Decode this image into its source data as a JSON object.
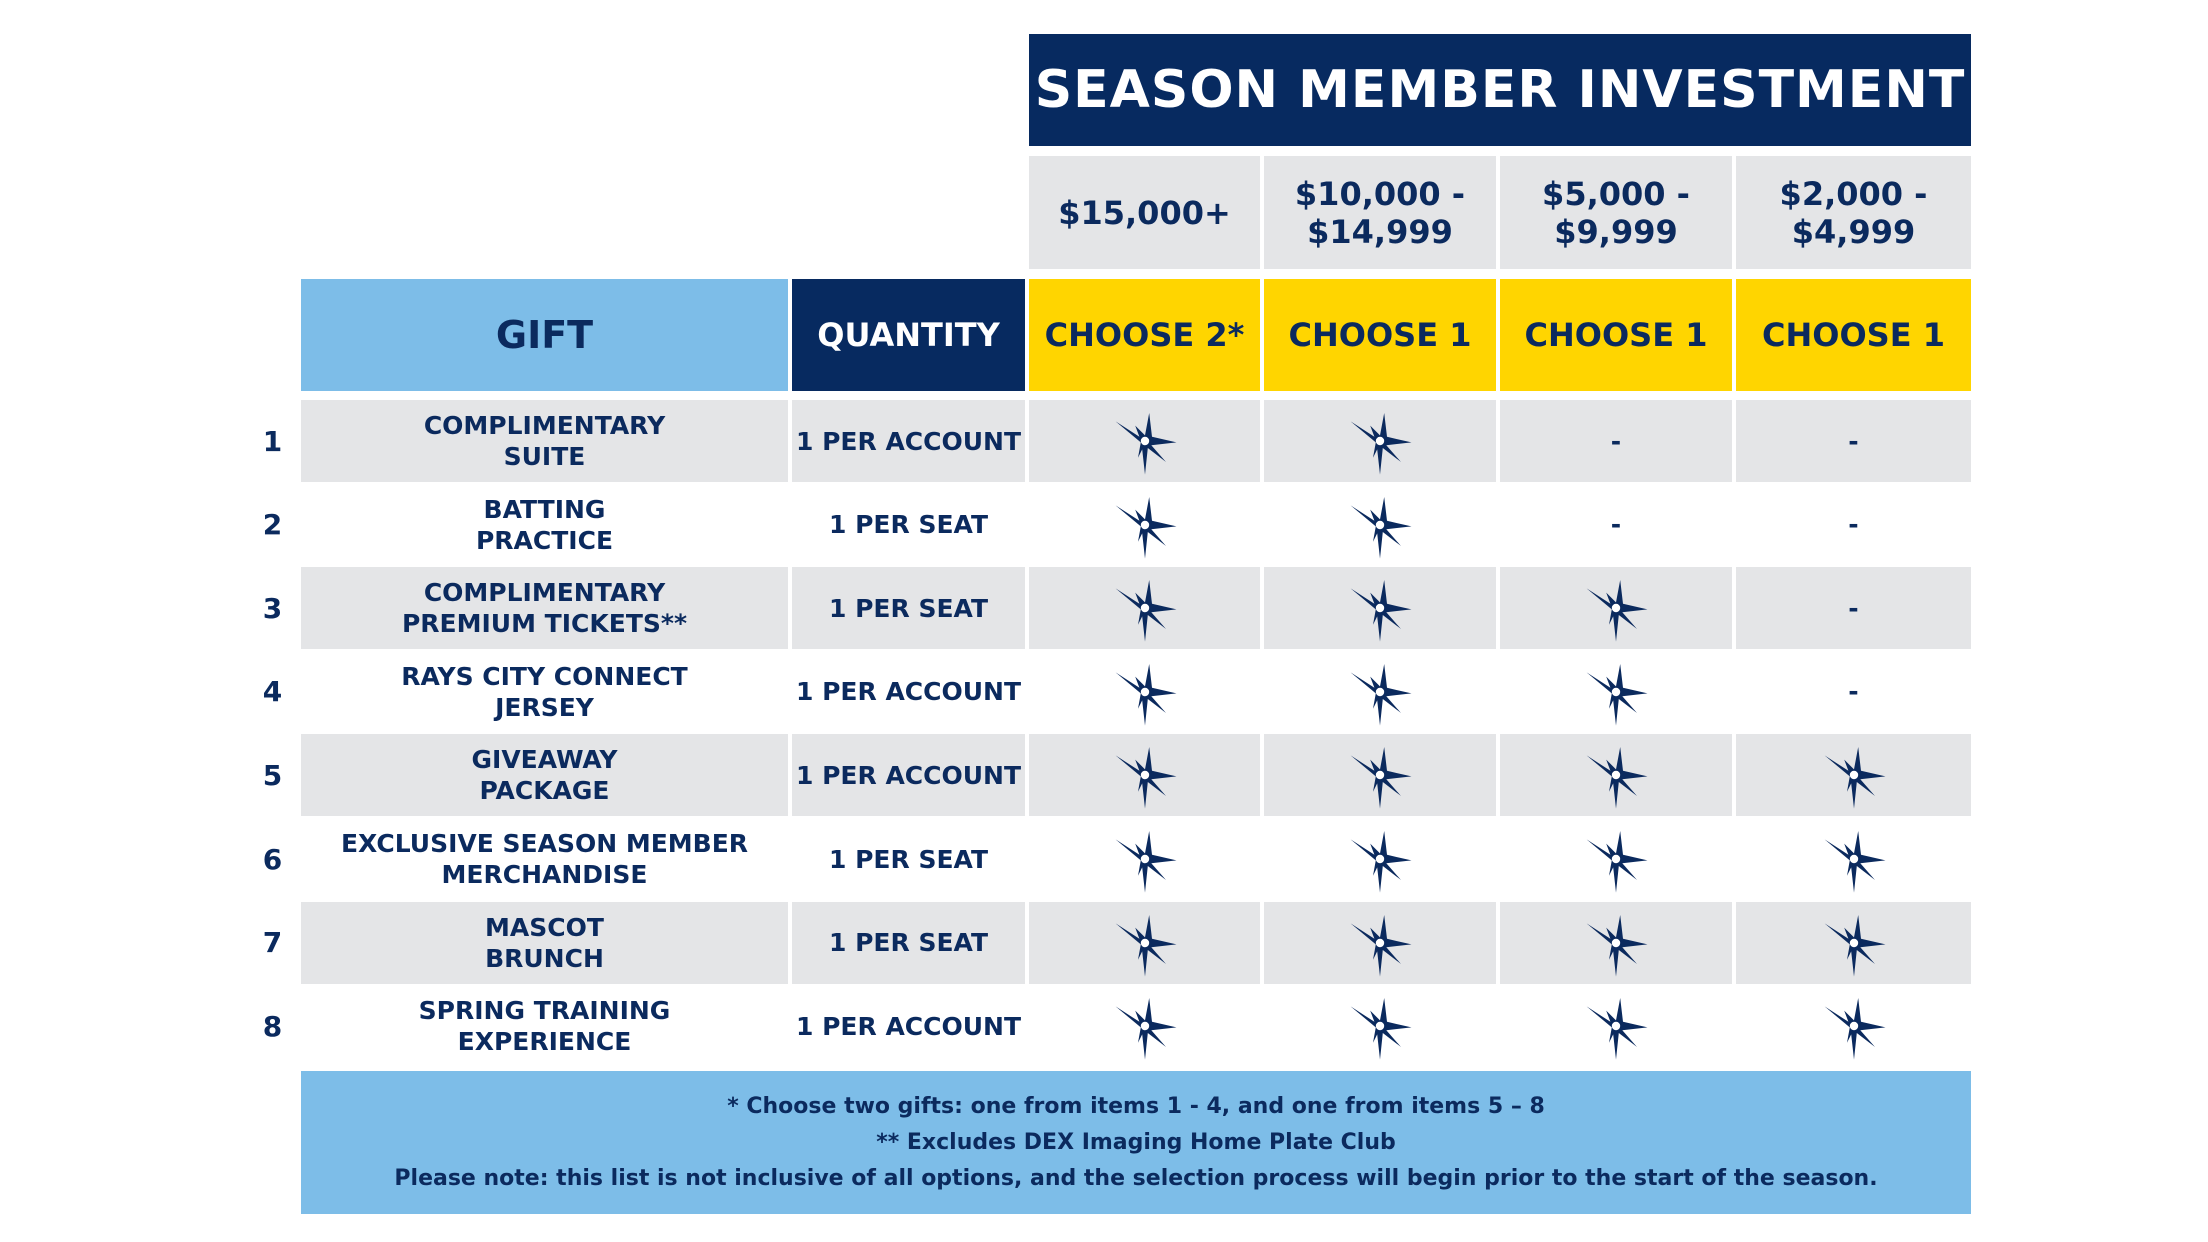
{
  "title": "SEASON MEMBER INVESTMENT",
  "tiers": [
    {
      "price": "$15,000+",
      "choose": "CHOOSE 2*"
    },
    {
      "price": "$10,000 -\n$14,999",
      "choose": "CHOOSE 1"
    },
    {
      "price": "$5,000 -\n$9,999",
      "choose": "CHOOSE 1"
    },
    {
      "price": "$2,000 -\n$4,999",
      "choose": "CHOOSE 1"
    }
  ],
  "headers": {
    "gift": "GIFT",
    "quantity": "QUANTITY"
  },
  "colors": {
    "navy": "#072a60",
    "light_blue": "#7dbde8",
    "yellow": "#ffd500",
    "grey": "#e4e5e7"
  },
  "included_icon": "rays-sunburst-star-icon",
  "not_included": "-",
  "rows": [
    {
      "num": "1",
      "gift": "COMPLIMENTARY\nSUITE",
      "qty": "1 PER ACCOUNT",
      "tiers": [
        true,
        true,
        false,
        false
      ]
    },
    {
      "num": "2",
      "gift": "BATTING\nPRACTICE",
      "qty": "1 PER SEAT",
      "tiers": [
        true,
        true,
        false,
        false
      ]
    },
    {
      "num": "3",
      "gift": "COMPLIMENTARY\nPREMIUM TICKETS**",
      "qty": "1 PER SEAT",
      "tiers": [
        true,
        true,
        true,
        false
      ]
    },
    {
      "num": "4",
      "gift": "RAYS CITY CONNECT\nJERSEY",
      "qty": "1 PER ACCOUNT",
      "tiers": [
        true,
        true,
        true,
        false
      ]
    },
    {
      "num": "5",
      "gift": "GIVEAWAY\nPACKAGE",
      "qty": "1 PER ACCOUNT",
      "tiers": [
        true,
        true,
        true,
        true
      ]
    },
    {
      "num": "6",
      "gift": "EXCLUSIVE SEASON MEMBER\nMERCHANDISE",
      "qty": "1 PER SEAT",
      "tiers": [
        true,
        true,
        true,
        true
      ]
    },
    {
      "num": "7",
      "gift": "MASCOT\nBRUNCH",
      "qty": "1 PER SEAT",
      "tiers": [
        true,
        true,
        true,
        true
      ]
    },
    {
      "num": "8",
      "gift": "SPRING TRAINING\nEXPERIENCE",
      "qty": "1 PER ACCOUNT",
      "tiers": [
        true,
        true,
        true,
        true
      ]
    }
  ],
  "footnotes": [
    "* Choose two gifts: one from items 1 - 4, and one from items 5 – 8",
    "** Excludes DEX Imaging Home Plate Club",
    "Please note: this list is not inclusive of all options, and the selection process will begin prior to the start of the season."
  ]
}
